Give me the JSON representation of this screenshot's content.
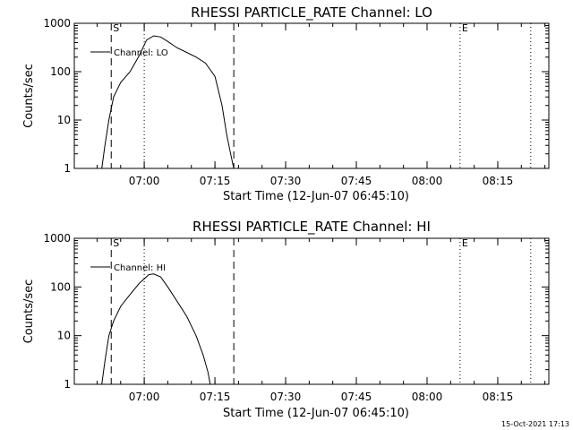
{
  "chart_data": [
    {
      "type": "line",
      "title": "RHESSI PARTICLE_RATE Channel: LO",
      "xlabel": "Start Time (12-Jun-07 06:45:10)",
      "ylabel": "Counts/sec",
      "yscale": "log",
      "ylim": [
        1,
        1000
      ],
      "xlim": [
        "06:45:10",
        "08:25:50"
      ],
      "xticks": [
        "07:00",
        "07:15",
        "07:30",
        "07:45",
        "08:00",
        "08:15"
      ],
      "yticks": [
        "1",
        "10",
        "100",
        "1000"
      ],
      "legend": {
        "position": "top-left",
        "entries": [
          "Channel: LO"
        ]
      },
      "markers": [
        {
          "label": "S",
          "time": "06:53:00",
          "style": "dashed"
        },
        {
          "label": "",
          "time": "07:19:00",
          "style": "dashed"
        },
        {
          "label": "E",
          "time": "08:07:00",
          "style": "dotted"
        },
        {
          "label": "",
          "time": "07:00:00",
          "style": "dotted"
        },
        {
          "label": "",
          "time": "08:22:00",
          "style": "dotted"
        }
      ],
      "series": [
        {
          "name": "Channel: LO",
          "x": [
            "06:51:00",
            "06:51:40",
            "06:52:30",
            "06:53:30",
            "06:55:00",
            "06:57:00",
            "06:59:00",
            "07:00:30",
            "07:02:00",
            "07:03:30",
            "07:05:00",
            "07:07:00",
            "07:09:00",
            "07:11:00",
            "07:13:00",
            "07:15:00",
            "07:16:30",
            "07:17:30",
            "07:18:20",
            "07:19:00"
          ],
          "y": [
            1,
            3,
            10,
            30,
            60,
            100,
            220,
            450,
            550,
            520,
            420,
            310,
            250,
            200,
            150,
            80,
            20,
            5,
            2,
            1
          ]
        }
      ]
    },
    {
      "type": "line",
      "title": "RHESSI PARTICLE_RATE Channel: HI",
      "xlabel": "Start Time (12-Jun-07 06:45:10)",
      "ylabel": "Counts/sec",
      "yscale": "log",
      "ylim": [
        1,
        1000
      ],
      "xlim": [
        "06:45:10",
        "08:25:50"
      ],
      "xticks": [
        "07:00",
        "07:15",
        "07:30",
        "07:45",
        "08:00",
        "08:15"
      ],
      "yticks": [
        "1",
        "10",
        "100",
        "1000"
      ],
      "legend": {
        "position": "top-left",
        "entries": [
          "Channel: HI"
        ]
      },
      "markers": [
        {
          "label": "S",
          "time": "06:53:00",
          "style": "dashed"
        },
        {
          "label": "",
          "time": "07:19:00",
          "style": "dashed"
        },
        {
          "label": "E",
          "time": "08:07:00",
          "style": "dotted"
        },
        {
          "label": "",
          "time": "07:00:00",
          "style": "dotted"
        },
        {
          "label": "",
          "time": "08:22:00",
          "style": "dotted"
        }
      ],
      "series": [
        {
          "name": "Channel: HI",
          "x": [
            "06:51:00",
            "06:51:40",
            "06:52:30",
            "06:53:30",
            "06:55:00",
            "06:57:00",
            "06:59:00",
            "07:01:00",
            "07:02:00",
            "07:03:30",
            "07:05:00",
            "07:07:00",
            "07:09:00",
            "07:11:00",
            "07:12:30",
            "07:13:30",
            "07:14:00"
          ],
          "y": [
            1,
            3,
            10,
            20,
            40,
            70,
            120,
            180,
            185,
            160,
            100,
            50,
            25,
            10,
            4,
            1.8,
            1
          ]
        }
      ]
    }
  ],
  "footer": {
    "timestamp": "15-Oct-2021 17:13"
  }
}
